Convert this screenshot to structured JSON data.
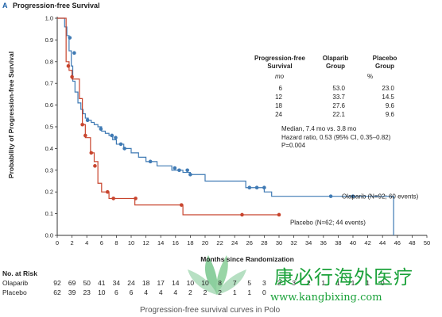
{
  "panel": {
    "letter": "A",
    "title": "Progression-free Survival"
  },
  "chart_data": {
    "type": "line",
    "title": "Progression-free Survival",
    "xlabel": "Months since Randomization",
    "ylabel": "Probability of Progression-free Survival",
    "xlim": [
      0,
      50
    ],
    "ylim": [
      0.0,
      1.0
    ],
    "x_ticks": [
      "0",
      "2",
      "4",
      "6",
      "8",
      "10",
      "12",
      "14",
      "16",
      "18",
      "20",
      "22",
      "24",
      "26",
      "28",
      "30",
      "32",
      "34",
      "36",
      "38",
      "40",
      "42",
      "44",
      "46",
      "48",
      "50"
    ],
    "y_ticks": [
      "0.0",
      "0.1",
      "0.2",
      "0.3",
      "0.4",
      "0.5",
      "0.6",
      "0.7",
      "0.8",
      "0.9",
      "1.0"
    ],
    "grid": false,
    "series": [
      {
        "name": "Olaparib (N=92; 60 events)",
        "color": "#3f7ab4",
        "step_x": [
          0,
          1.0,
          1.3,
          1.6,
          1.9,
          2.1,
          2.4,
          2.8,
          3.2,
          3.5,
          3.8,
          4.2,
          4.6,
          5.0,
          5.5,
          6.0,
          6.5,
          7.0,
          7.5,
          8.0,
          9.0,
          10.0,
          11.0,
          12.0,
          13.5,
          15.5,
          17.0,
          18.0,
          20.0,
          25.5,
          28.0,
          29.0,
          45.5
        ],
        "step_y": [
          1.0,
          0.96,
          0.92,
          0.85,
          0.78,
          0.71,
          0.66,
          0.61,
          0.58,
          0.56,
          0.54,
          0.53,
          0.52,
          0.51,
          0.5,
          0.48,
          0.47,
          0.46,
          0.44,
          0.42,
          0.4,
          0.38,
          0.36,
          0.34,
          0.32,
          0.3,
          0.29,
          0.28,
          0.25,
          0.22,
          0.2,
          0.18,
          0.0
        ],
        "censor_x": [
          1.7,
          2.3,
          4.1,
          5.9,
          7.4,
          7.9,
          8.6,
          9.1,
          12.6,
          15.9,
          16.5,
          17.6,
          18.0,
          26.0,
          27.0,
          28.0,
          37.0,
          40.0
        ],
        "censor_y": [
          0.91,
          0.84,
          0.53,
          0.49,
          0.46,
          0.45,
          0.42,
          0.4,
          0.34,
          0.31,
          0.3,
          0.3,
          0.28,
          0.22,
          0.22,
          0.22,
          0.18,
          0.18
        ]
      },
      {
        "name": "Placebo (N=62; 44 events)",
        "color": "#c8452e",
        "step_x": [
          0,
          1.2,
          1.6,
          2.0,
          3.0,
          3.4,
          3.8,
          4.5,
          5.0,
          5.5,
          6.0,
          7.0,
          10.5,
          17.0,
          30.0
        ],
        "step_y": [
          1.0,
          0.8,
          0.76,
          0.72,
          0.63,
          0.51,
          0.45,
          0.38,
          0.34,
          0.24,
          0.2,
          0.17,
          0.14,
          0.095,
          0.095
        ],
        "censor_x": [
          1.5,
          2.0,
          3.4,
          3.8,
          4.6,
          5.1,
          6.8,
          7.6,
          10.6,
          16.8,
          25.0,
          30.0
        ],
        "censor_y": [
          0.78,
          0.73,
          0.51,
          0.46,
          0.38,
          0.32,
          0.2,
          0.17,
          0.17,
          0.14,
          0.095,
          0.095
        ]
      }
    ],
    "annotations": [
      {
        "text": "Olaparib (N=92; 60 events)",
        "x": 38.5,
        "y": 0.18
      },
      {
        "text": "Placebo (N=62; 44 events)",
        "x": 31.5,
        "y": 0.06
      }
    ]
  },
  "pfs_table": {
    "headers": {
      "pfs": "Progression-free Survival",
      "olaparib": "Olaparib Group",
      "placebo": "Placebo Group"
    },
    "subheader": {
      "mo": "mo",
      "percent": "%"
    },
    "rows": [
      {
        "month": "6",
        "olaparib": "53.0",
        "placebo": "23.0"
      },
      {
        "month": "12",
        "olaparib": "33.7",
        "placebo": "14.5"
      },
      {
        "month": "18",
        "olaparib": "27.6",
        "placebo": "9.6"
      },
      {
        "month": "24",
        "olaparib": "22.1",
        "placebo": "9.6"
      }
    ]
  },
  "stats": {
    "median": "Median, 7.4 mo  vs. 3.8 mo",
    "hazard": "Hazard ratio, 0.53 (95% CI, 0.35–0.82)",
    "p": "P=0.004"
  },
  "risk": {
    "title": "No. at Risk",
    "rows": [
      {
        "label": "Olaparib",
        "values": [
          "92",
          "69",
          "50",
          "41",
          "34",
          "24",
          "18",
          "17",
          "14",
          "10",
          "10",
          "8",
          "7",
          "5",
          "3",
          "3",
          "3",
          "2",
          "1",
          "1",
          "1",
          "1",
          "0"
        ]
      },
      {
        "label": "Placebo",
        "values": [
          "62",
          "39",
          "23",
          "10",
          "6",
          "6",
          "4",
          "4",
          "4",
          "2",
          "2",
          "2",
          "1",
          "1",
          "0"
        ]
      }
    ]
  },
  "caption": "Progression-free survival curves in Polo",
  "watermark": {
    "cn": "康必行海外医疗",
    "url": "www.kangbixing.com"
  }
}
